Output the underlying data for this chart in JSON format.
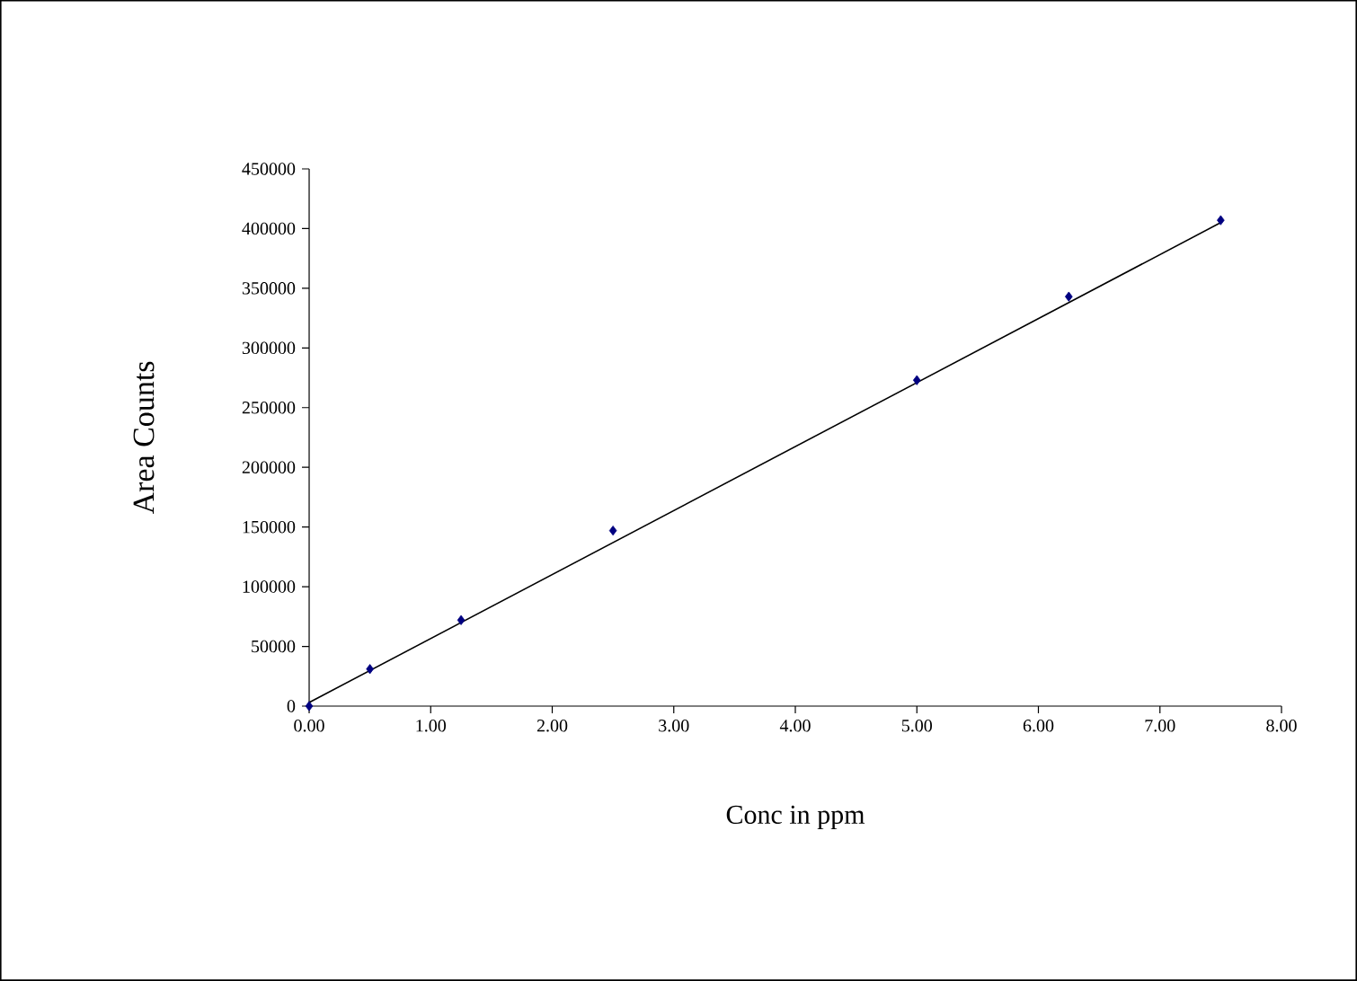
{
  "chart_data": {
    "type": "scatter",
    "xlabel": "Conc in ppm",
    "ylabel": "Area Counts",
    "xlim": [
      0,
      8
    ],
    "ylim": [
      0,
      450000
    ],
    "xticks": [
      {
        "value": 0,
        "label": "0.00"
      },
      {
        "value": 1,
        "label": "1.00"
      },
      {
        "value": 2,
        "label": "2.00"
      },
      {
        "value": 3,
        "label": "3.00"
      },
      {
        "value": 4,
        "label": "4.00"
      },
      {
        "value": 5,
        "label": "5.00"
      },
      {
        "value": 6,
        "label": "6.00"
      },
      {
        "value": 7,
        "label": "7.00"
      },
      {
        "value": 8,
        "label": "8.00"
      }
    ],
    "yticks": [
      0,
      50000,
      100000,
      150000,
      200000,
      250000,
      300000,
      350000,
      400000,
      450000
    ],
    "series": [
      {
        "marker": "diamond",
        "color": "#000080",
        "x": [
          0,
          0.5,
          1.25,
          2.5,
          5.0,
          6.25,
          7.5
        ],
        "values": [
          0,
          31000,
          72000,
          147000,
          273000,
          343000,
          407000
        ]
      },
      {
        "type": "line",
        "marker": "none",
        "line_style": "solid",
        "color": "#000000",
        "x": [
          0,
          7.5
        ],
        "values": [
          3000,
          405000
        ]
      }
    ]
  }
}
